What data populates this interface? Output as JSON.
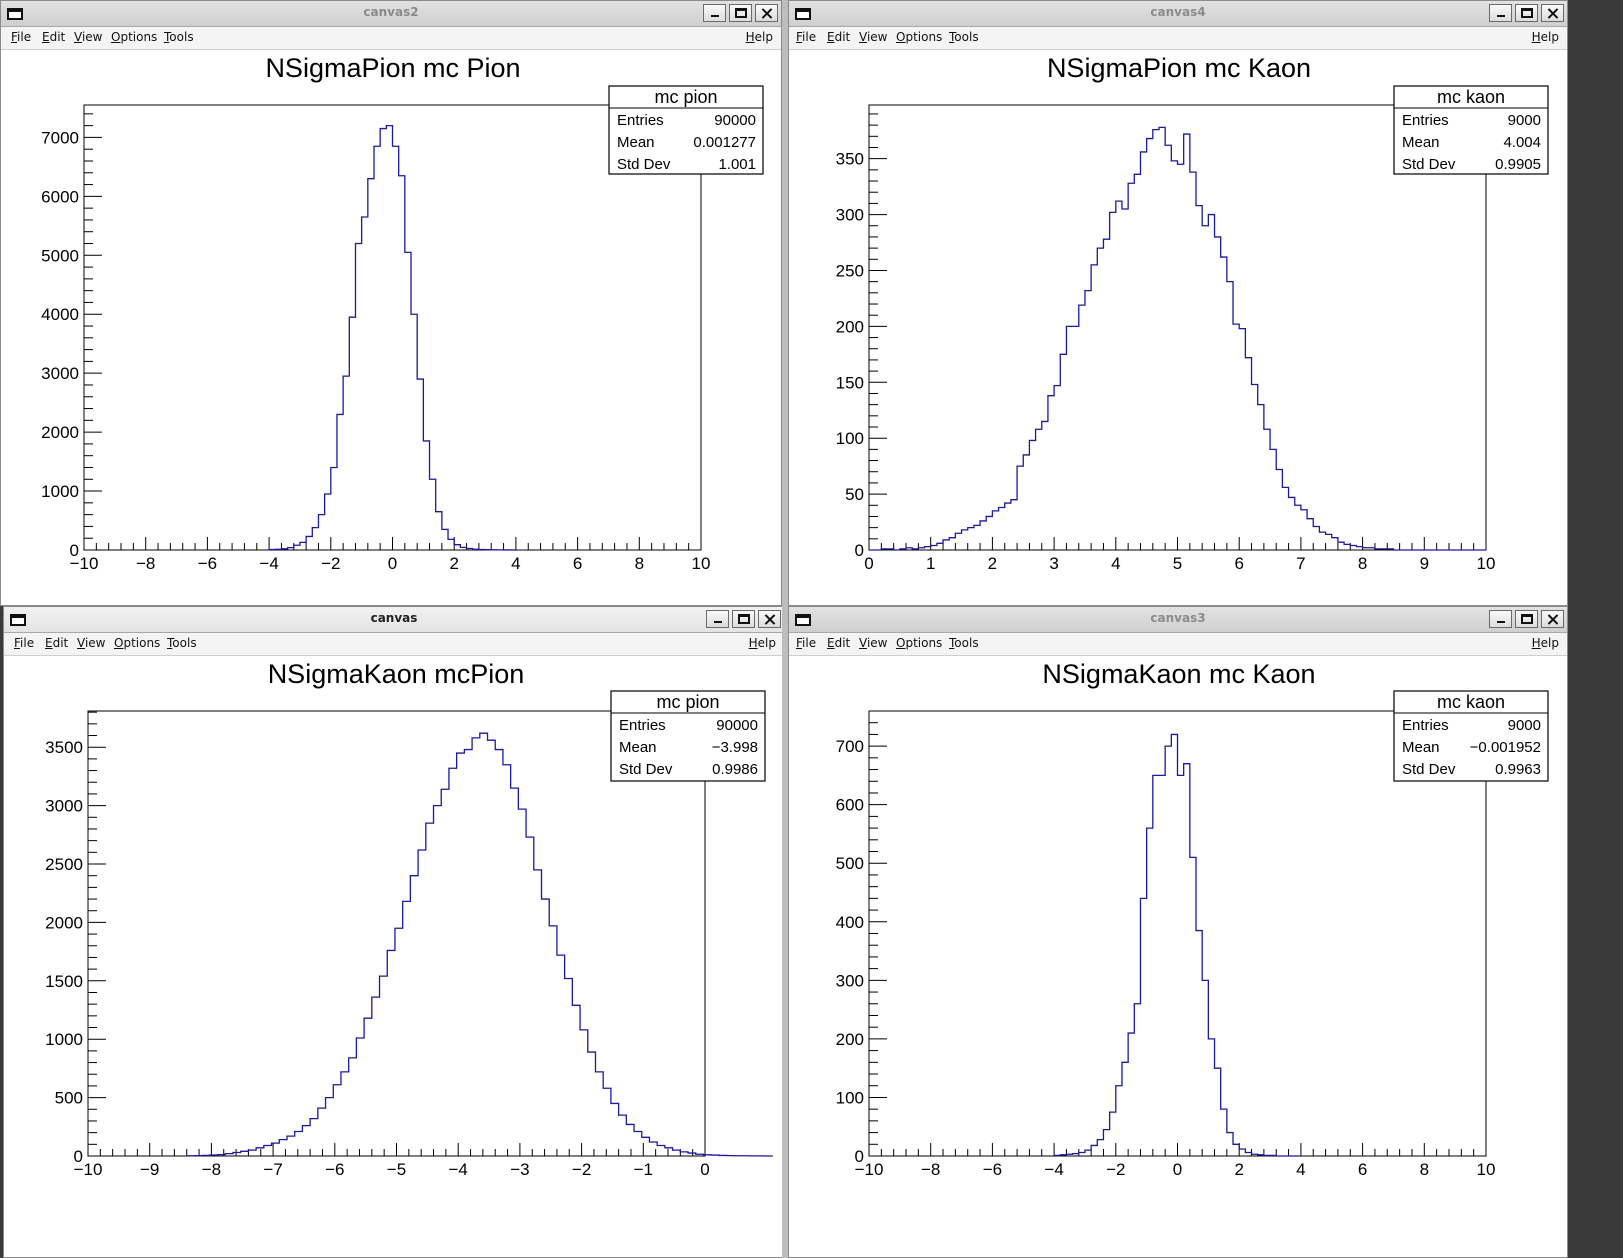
{
  "menu": {
    "file": "File",
    "edit": "Edit",
    "view": "View",
    "options": "Options",
    "tools": "Tools",
    "help": "Help"
  },
  "windows": [
    {
      "title": "canvas2",
      "active": false,
      "chart_data": {
        "type": "histogram",
        "title": "NSigmaPion mc Pion",
        "xlabel": "",
        "ylabel": "",
        "xlim": [
          -10,
          10
        ],
        "ylim": [
          0,
          7550
        ],
        "x_ticks": [
          -10,
          -8,
          -6,
          -4,
          -2,
          0,
          2,
          4,
          6,
          8,
          10
        ],
        "x_tick_labels": [
          "−10",
          "−8",
          "−6",
          "−4",
          "−2",
          "0",
          "2",
          "4",
          "6",
          "8",
          "10"
        ],
        "y_ticks": [
          0,
          1000,
          2000,
          3000,
          4000,
          5000,
          6000,
          7000
        ],
        "y_tick_labels": [
          "0",
          "1000",
          "2000",
          "3000",
          "4000",
          "5000",
          "6000",
          "7000"
        ],
        "bin_edges_start": -4,
        "bin_width": 0.2,
        "counts": [
          8,
          12,
          20,
          40,
          80,
          130,
          230,
          380,
          600,
          950,
          1400,
          2300,
          2950,
          3950,
          5200,
          5650,
          6300,
          6850,
          7150,
          7200,
          6850,
          6350,
          5050,
          4000,
          2900,
          1850,
          1200,
          650,
          350,
          180,
          90,
          45,
          25,
          12,
          8,
          5,
          3,
          2,
          1,
          1
        ],
        "line_color": "#1a1a9e",
        "stats": {
          "header": "mc pion",
          "rows": [
            [
              "Entries",
              "90000"
            ],
            [
              "Mean",
              "0.001277"
            ],
            [
              "Std Dev",
              "1.001"
            ]
          ]
        }
      }
    },
    {
      "title": "canvas4",
      "active": false,
      "chart_data": {
        "type": "histogram",
        "title": "NSigmaPion mc Kaon",
        "xlabel": "",
        "ylabel": "",
        "xlim": [
          0,
          10
        ],
        "ylim": [
          0,
          398
        ],
        "x_ticks": [
          0,
          1,
          2,
          3,
          4,
          5,
          6,
          7,
          8,
          9,
          10
        ],
        "x_tick_labels": [
          "0",
          "1",
          "2",
          "3",
          "4",
          "5",
          "6",
          "7",
          "8",
          "9",
          "10"
        ],
        "y_ticks": [
          0,
          50,
          100,
          150,
          200,
          250,
          300,
          350
        ],
        "y_tick_labels": [
          "0",
          "50",
          "100",
          "150",
          "200",
          "250",
          "300",
          "350"
        ],
        "bin_edges_start": 0,
        "bin_width": 0.1,
        "counts": [
          0,
          0,
          1,
          1,
          0,
          1,
          2,
          1,
          2,
          3,
          4,
          6,
          9,
          11,
          15,
          18,
          20,
          22,
          26,
          30,
          35,
          38,
          42,
          45,
          75,
          85,
          98,
          108,
          115,
          138,
          147,
          175,
          200,
          200,
          219,
          232,
          255,
          270,
          278,
          302,
          312,
          305,
          328,
          336,
          356,
          368,
          376,
          378,
          362,
          348,
          345,
          372,
          338,
          308,
          290,
          300,
          280,
          262,
          240,
          202,
          198,
          172,
          148,
          130,
          108,
          90,
          72,
          56,
          47,
          40,
          36,
          28,
          21,
          16,
          14,
          11,
          7,
          5,
          4,
          3,
          2,
          2,
          1,
          1,
          1,
          0,
          0,
          0,
          0,
          0,
          0,
          0,
          0,
          0,
          0,
          0,
          0,
          0,
          0,
          0
        ],
        "line_color": "#1a1a9e",
        "stats": {
          "header": "mc kaon",
          "rows": [
            [
              "Entries",
              "9000"
            ],
            [
              "Mean",
              "4.004"
            ],
            [
              "Std Dev",
              "0.9905"
            ]
          ]
        }
      }
    },
    {
      "title": "canvas",
      "active": true,
      "chart_data": {
        "type": "histogram",
        "title": "NSigmaKaon mcPion",
        "xlabel": "",
        "ylabel": "",
        "xlim": [
          -10,
          0
        ],
        "ylim": [
          0,
          3810
        ],
        "x_ticks": [
          -10,
          -9,
          -8,
          -7,
          -6,
          -5,
          -4,
          -3,
          -2,
          -1,
          0
        ],
        "x_tick_labels": [
          "−10",
          "−9",
          "−8",
          "−7",
          "−6",
          "−5",
          "−4",
          "−3",
          "−2",
          "−1",
          "0"
        ],
        "y_ticks": [
          0,
          500,
          1000,
          1500,
          2000,
          2500,
          3000,
          3500
        ],
        "y_tick_labels": [
          "0",
          "500",
          "1000",
          "1500",
          "2000",
          "2500",
          "3000",
          "3500"
        ],
        "bin_edges_start": -8.4,
        "bin_width": 0.125,
        "counts": [
          2,
          3,
          5,
          8,
          12,
          20,
          30,
          40,
          50,
          70,
          90,
          110,
          140,
          170,
          210,
          260,
          320,
          410,
          500,
          610,
          720,
          840,
          1010,
          1180,
          1360,
          1540,
          1760,
          1950,
          2180,
          2400,
          2620,
          2850,
          3000,
          3140,
          3320,
          3450,
          3480,
          3580,
          3620,
          3560,
          3480,
          3350,
          3150,
          2970,
          2730,
          2450,
          2200,
          1970,
          1720,
          1520,
          1290,
          1080,
          890,
          720,
          580,
          450,
          350,
          270,
          210,
          160,
          120,
          90,
          70,
          50,
          35,
          25,
          15,
          10,
          8,
          5,
          3,
          2,
          2,
          1,
          1,
          0
        ],
        "line_color": "#1a1a9e",
        "stats": {
          "header": "mc pion",
          "rows": [
            [
              "Entries",
              "90000"
            ],
            [
              "Mean",
              "−3.998"
            ],
            [
              "Std Dev",
              "0.9986"
            ]
          ]
        }
      }
    },
    {
      "title": "canvas3",
      "active": false,
      "chart_data": {
        "type": "histogram",
        "title": "NSigmaKaon mc Kaon",
        "xlabel": "",
        "ylabel": "",
        "xlim": [
          -10,
          10
        ],
        "ylim": [
          0,
          760
        ],
        "x_ticks": [
          -10,
          -8,
          -6,
          -4,
          -2,
          0,
          2,
          4,
          6,
          8,
          10
        ],
        "x_tick_labels": [
          "−10",
          "−8",
          "−6",
          "−4",
          "−2",
          "0",
          "2",
          "4",
          "6",
          "8",
          "10"
        ],
        "y_ticks": [
          0,
          100,
          200,
          300,
          400,
          500,
          600,
          700
        ],
        "y_tick_labels": [
          "0",
          "100",
          "200",
          "300",
          "400",
          "500",
          "600",
          "700"
        ],
        "bin_edges_start": -4,
        "bin_width": 0.2,
        "counts": [
          1,
          2,
          3,
          4,
          6,
          10,
          18,
          28,
          45,
          75,
          120,
          160,
          210,
          260,
          440,
          560,
          650,
          650,
          700,
          720,
          650,
          670,
          510,
          385,
          300,
          200,
          150,
          80,
          40,
          20,
          12,
          6,
          3,
          2,
          1,
          1,
          0,
          0,
          0,
          0
        ],
        "line_color": "#1a1a9e",
        "stats": {
          "header": "mc kaon",
          "rows": [
            [
              "Entries",
              "9000"
            ],
            [
              "Mean",
              "−0.001952"
            ],
            [
              "Std Dev",
              "0.9963"
            ]
          ]
        }
      }
    }
  ]
}
